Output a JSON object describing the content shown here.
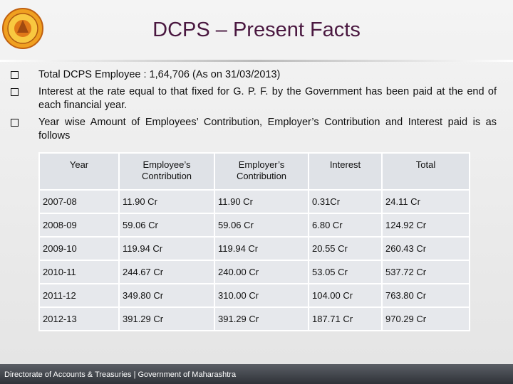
{
  "title": "DCPS – Present Facts",
  "bullets": [
    "Total DCPS Employee : 1,64,706 (As on 31/03/2013)",
    "Interest at the rate equal to that fixed for G. P. F. by the Government has been paid at the end of each financial year.",
    "Year wise Amount of Employees’ Contribution, Employer’s Contribution and Interest paid is as follows"
  ],
  "table": {
    "header": [
      "Year",
      "Employee’s Contribution",
      "Employer’s Contribution",
      "Interest",
      "Total"
    ],
    "rows": [
      [
        "2007-08",
        "11.90 Cr",
        "11.90 Cr",
        "0.31Cr",
        "24.11 Cr"
      ],
      [
        "2008-09",
        "59.06 Cr",
        "59.06 Cr",
        "6.80 Cr",
        "124.92 Cr"
      ],
      [
        "2009-10",
        "119.94 Cr",
        "119.94 Cr",
        "20.55 Cr",
        "260.43 Cr"
      ],
      [
        "2010-11",
        "244.67 Cr",
        "240.00 Cr",
        "53.05 Cr",
        "537.72 Cr"
      ],
      [
        "2011-12",
        "349.80 Cr",
        "310.00 Cr",
        "104.00 Cr",
        "763.80 Cr"
      ],
      [
        "2012-13",
        "391.29 Cr",
        "391.29 Cr",
        "187.71 Cr",
        "970.29 Cr"
      ]
    ]
  },
  "footer": "Directorate of Accounts & Treasuries | Government of Maharashtra"
}
